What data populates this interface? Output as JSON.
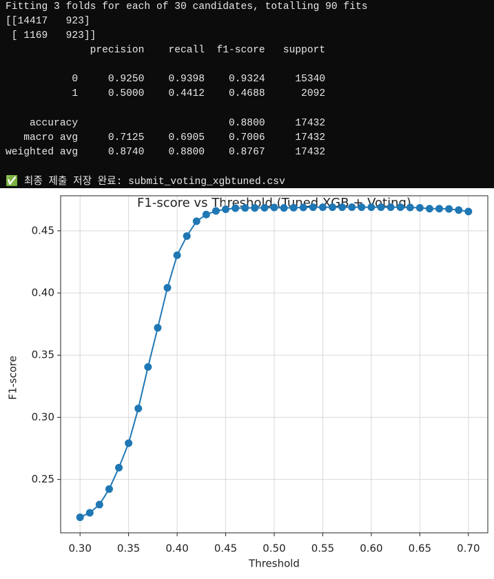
{
  "console": {
    "output": [
      "Fitting 3 folds for each of 30 candidates, totalling 90 fits",
      "[[14417   923]",
      " [ 1169   923]]"
    ],
    "report_header": "              precision    recall  f1-score   support",
    "class_rows": [
      "           0     0.9250    0.9398    0.9324     15340",
      "           1     0.5000    0.4412    0.4688      2092"
    ],
    "summary_rows": [
      "    accuracy                         0.8800     17432",
      "   macro avg     0.7125    0.6905    0.7006     17432",
      "weighted avg     0.8740    0.8800    0.8767     17432"
    ],
    "message": "✅ 최종 제출 저장 완료: submit_voting_xgbtuned.csv"
  },
  "chart_data": {
    "type": "line",
    "title": "F1-score vs Threshold (Tuned XGB + Voting)",
    "x_label": "Threshold",
    "y_label": "F1-score",
    "x": [
      0.3,
      0.31,
      0.32,
      0.33,
      0.34,
      0.35,
      0.36,
      0.37,
      0.38,
      0.39,
      0.4,
      0.41,
      0.42,
      0.43,
      0.44,
      0.45,
      0.46,
      0.47,
      0.48,
      0.49,
      0.5,
      0.51,
      0.52,
      0.53,
      0.54,
      0.55,
      0.56,
      0.57,
      0.58,
      0.59,
      0.6,
      0.61,
      0.62,
      0.63,
      0.64,
      0.65,
      0.66,
      0.67,
      0.68,
      0.69,
      0.7
    ],
    "values": [
      0.2196,
      0.2232,
      0.2298,
      0.2423,
      0.2595,
      0.2792,
      0.3071,
      0.3405,
      0.372,
      0.4042,
      0.4304,
      0.4458,
      0.4577,
      0.4631,
      0.466,
      0.4673,
      0.4682,
      0.4684,
      0.4684,
      0.4685,
      0.4688,
      0.4684,
      0.4686,
      0.4688,
      0.469,
      0.469,
      0.469,
      0.469,
      0.469,
      0.469,
      0.469,
      0.469,
      0.469,
      0.469,
      0.4688,
      0.4685,
      0.4678,
      0.4678,
      0.4676,
      0.4667,
      0.4655
    ],
    "color": "#1f77b4",
    "markers": true,
    "grid": true,
    "xlim": [
      0.28,
      0.72
    ],
    "ylim": [
      0.2071,
      0.4782
    ],
    "xticks": [
      {
        "value": 0.3,
        "label": "0.30"
      },
      {
        "value": 0.35,
        "label": "0.35"
      },
      {
        "value": 0.4,
        "label": "0.40"
      },
      {
        "value": 0.45,
        "label": "0.45"
      },
      {
        "value": 0.5,
        "label": "0.50"
      },
      {
        "value": 0.55,
        "label": "0.55"
      },
      {
        "value": 0.6,
        "label": "0.60"
      },
      {
        "value": 0.65,
        "label": "0.65"
      },
      {
        "value": 0.7,
        "label": "0.70"
      }
    ],
    "yticks": [
      0.25,
      {
        "value": 0.3,
        "label": "0.30"
      },
      0.35,
      {
        "value": 0.4,
        "label": "0.40"
      },
      0.45
    ]
  }
}
